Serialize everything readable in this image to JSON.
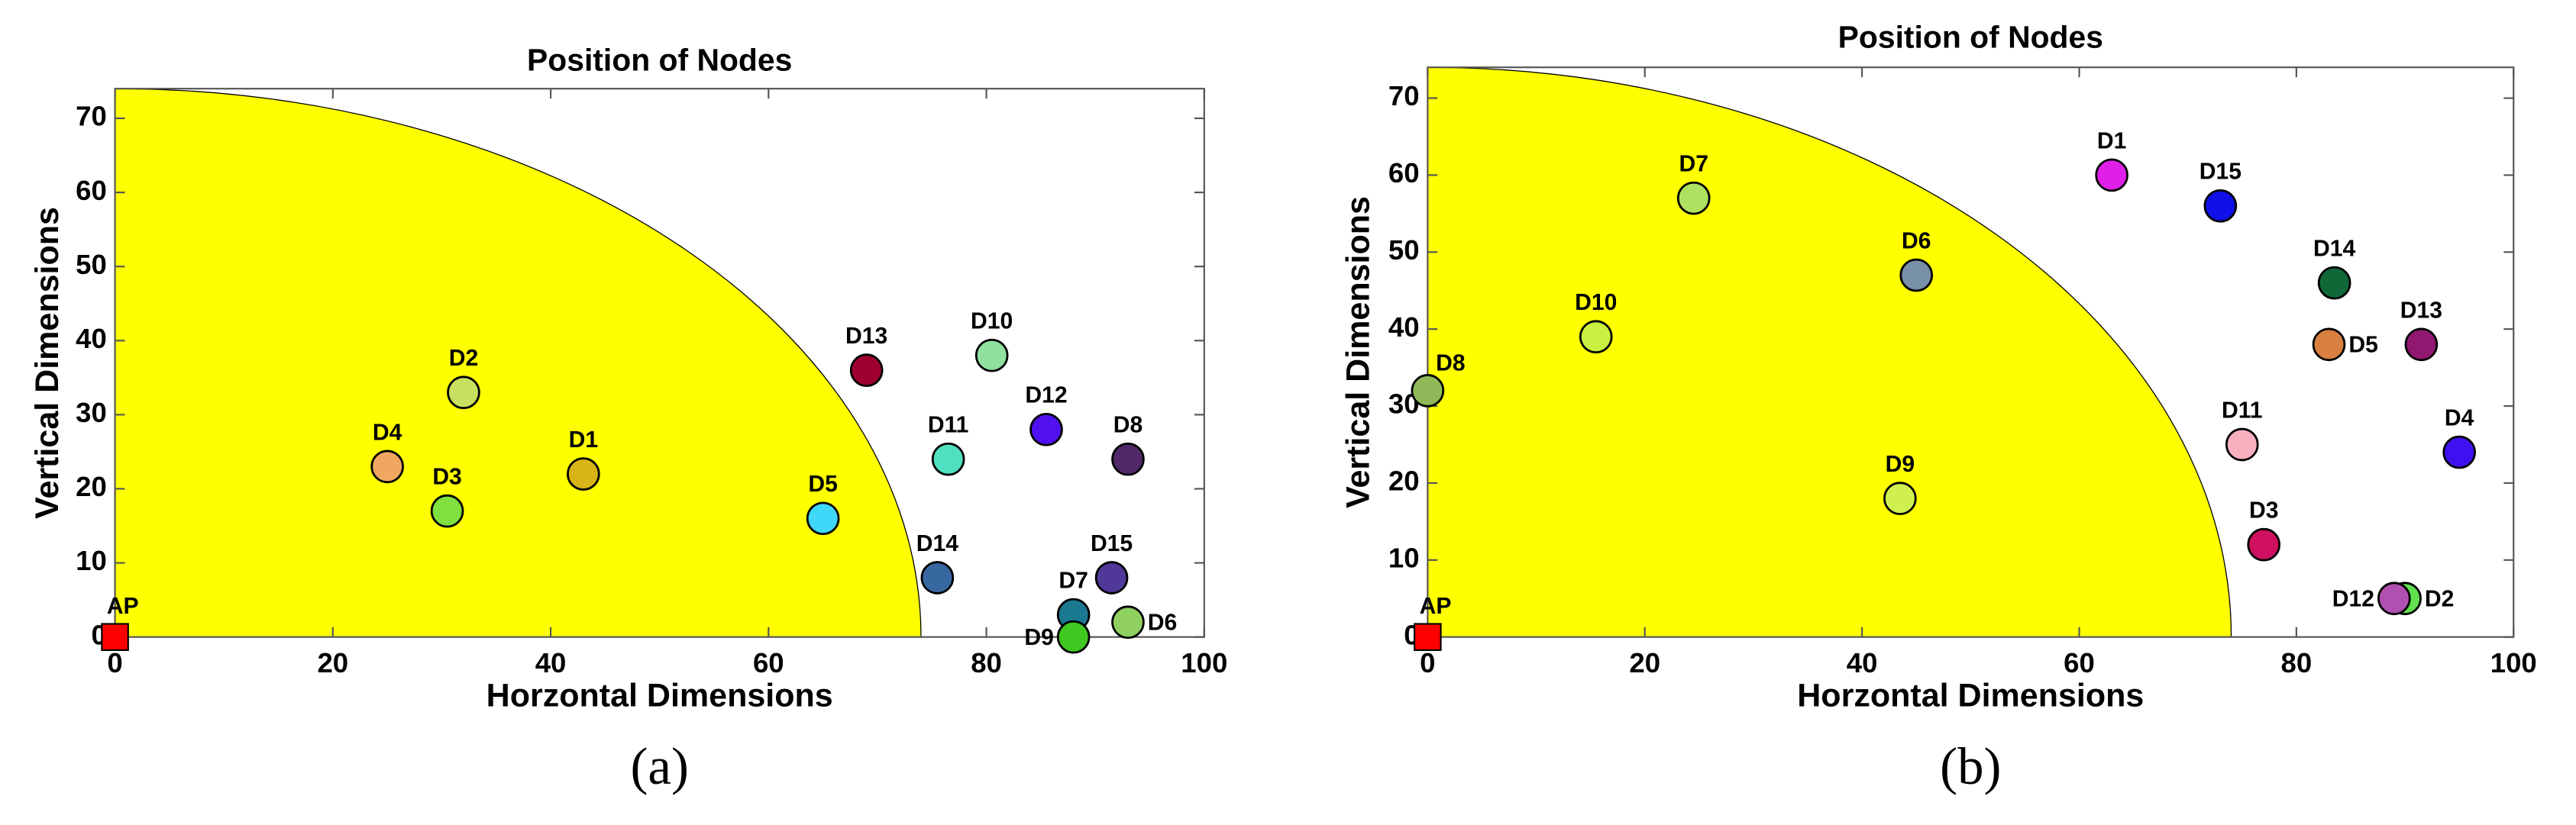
{
  "chart_data": [
    {
      "type": "scatter",
      "title": "Position of Nodes",
      "xlabel": "Horzontal Dimensions",
      "ylabel": "Vertical Dimensions",
      "caption": "(a)",
      "xlim": [
        0,
        100
      ],
      "ylim": [
        0,
        74
      ],
      "xticks": [
        0,
        20,
        40,
        60,
        80,
        100
      ],
      "yticks": [
        0,
        10,
        20,
        30,
        40,
        50,
        60,
        70
      ],
      "coverage_radius": 74,
      "coverage_color": "#ffff00",
      "ap": {
        "label": "AP",
        "x": 0,
        "y": 0,
        "color": "#ff0000"
      },
      "nodes": {
        "labels": [
          "D1",
          "D2",
          "D3",
          "D4",
          "D5",
          "D6",
          "D7",
          "D8",
          "D9",
          "D10",
          "D11",
          "D12",
          "D13",
          "D14",
          "D15"
        ],
        "x": [
          43,
          32,
          30.5,
          25,
          65,
          93,
          88,
          93,
          88,
          80.5,
          76.5,
          85.5,
          69,
          75.5,
          91.5
        ],
        "y": [
          22,
          33,
          17,
          23,
          16,
          2,
          3,
          24,
          0,
          38,
          24,
          28,
          36,
          8,
          8
        ],
        "colors": [
          "#d8b418",
          "#c8e060",
          "#80e040",
          "#f0a860",
          "#40d8f8",
          "#90d060",
          "#1a7890",
          "#502868",
          "#40c820",
          "#90e0a0",
          "#50e0c0",
          "#5010f0",
          "#a00030",
          "#3868a0",
          "#503898"
        ]
      }
    },
    {
      "type": "scatter",
      "title": "Position of Nodes",
      "xlabel": "Horzontal Dimensions",
      "ylabel": "Vertical Dimensions",
      "caption": "(b)",
      "xlim": [
        0,
        100
      ],
      "ylim": [
        0,
        74
      ],
      "xticks": [
        0,
        20,
        40,
        60,
        80,
        100
      ],
      "yticks": [
        0,
        10,
        20,
        30,
        40,
        50,
        60,
        70
      ],
      "coverage_radius": 74,
      "coverage_color": "#ffff00",
      "ap": {
        "label": "AP",
        "x": 0,
        "y": 0,
        "color": "#ff0000"
      },
      "nodes": {
        "labels": [
          "D1",
          "D2",
          "D3",
          "D4",
          "D5",
          "D6",
          "D7",
          "D8",
          "D9",
          "D10",
          "D11",
          "D12",
          "D13",
          "D14",
          "D15"
        ],
        "x": [
          63,
          90,
          77,
          95,
          83,
          45,
          24.5,
          0,
          43.5,
          15.5,
          75,
          89,
          91.5,
          83.5,
          73
        ],
        "y": [
          60,
          5,
          12,
          24,
          38,
          47,
          57,
          32,
          18,
          39,
          25,
          5,
          38,
          46,
          56
        ],
        "colors": [
          "#e020e8",
          "#60e050",
          "#d01060",
          "#4010f0",
          "#d88040",
          "#7890a8",
          "#b0e060",
          "#90b858",
          "#d0f050",
          "#c8f040",
          "#f8b0c0",
          "#b050b0",
          "#901870",
          "#106838",
          "#1010e8"
        ]
      }
    }
  ]
}
